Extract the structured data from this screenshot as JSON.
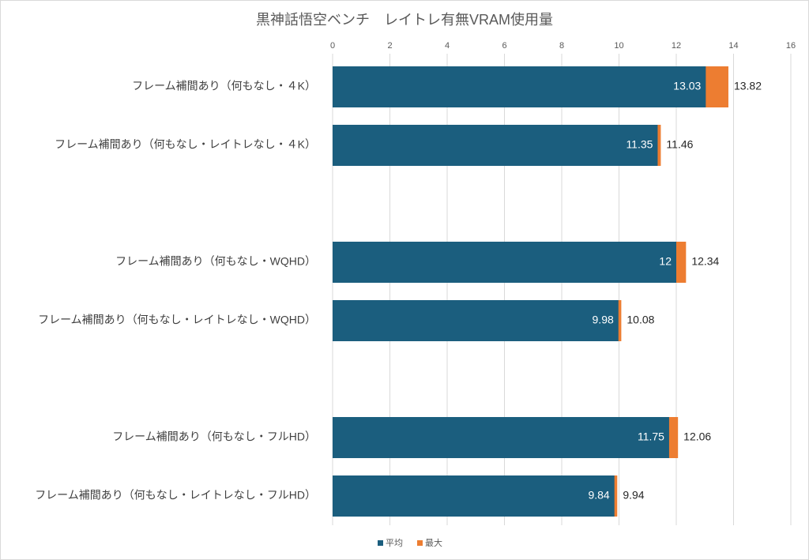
{
  "chart_data": {
    "type": "bar",
    "orientation": "horizontal",
    "title": "黒神話悟空ベンチ　レイトレ有無VRAM使用量",
    "categories": [
      "フレーム補間あり（何もなし・４K）",
      "フレーム補間あり（何もなし・レイトレなし・４K）",
      null,
      "フレーム補間あり（何もなし・WQHD）",
      "フレーム補間あり（何もなし・レイトレなし・WQHD）",
      null,
      "フレーム補間あり（何もなし・フルHD）",
      "フレーム補間あり（何もなし・レイトレなし・フルHD）"
    ],
    "series": [
      {
        "name": "平均",
        "color": "#1b5e7e",
        "values": [
          13.03,
          11.35,
          null,
          12,
          9.98,
          null,
          11.75,
          9.84
        ]
      },
      {
        "name": "最大",
        "color": "#ed7d31",
        "values": [
          13.82,
          11.46,
          null,
          12.34,
          10.08,
          null,
          12.06,
          9.94
        ]
      }
    ],
    "xlim": [
      0,
      16
    ],
    "xticks": [
      0,
      2,
      4,
      6,
      8,
      10,
      12,
      14,
      16
    ],
    "grid": true,
    "legend": "bottom"
  }
}
